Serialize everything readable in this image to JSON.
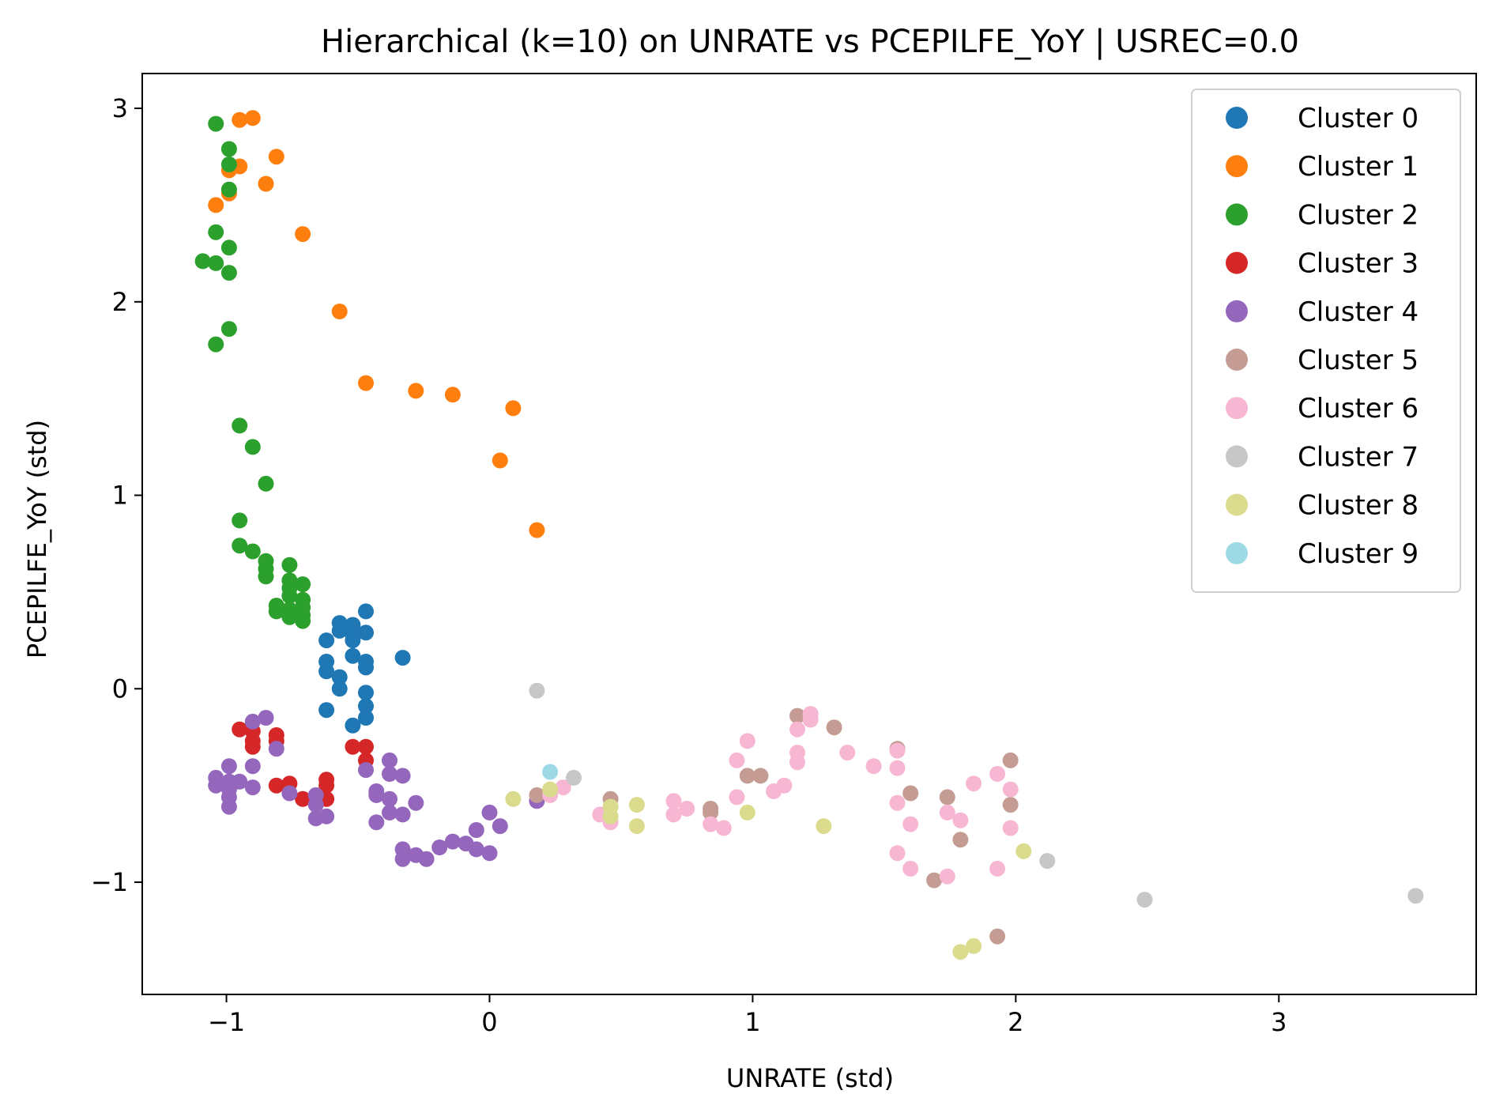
{
  "chart_data": {
    "type": "scatter",
    "title": "Hierarchical (k=10) on UNRATE vs PCEPILFE_YoY | USREC=0.0",
    "xlabel": "UNRATE (std)",
    "ylabel": "PCEPILFE_YoY (std)",
    "xlim": [
      -1.32,
      3.75
    ],
    "ylim": [
      -1.58,
      3.18
    ],
    "xticks": [
      -1,
      0,
      1,
      2,
      3
    ],
    "xtick_labels": [
      "−1",
      "0",
      "1",
      "2",
      "3"
    ],
    "yticks": [
      -1,
      0,
      1,
      2,
      3
    ],
    "ytick_labels": [
      "−1",
      "0",
      "1",
      "2",
      "3"
    ],
    "grid": false,
    "legend_position": "top-right",
    "series": [
      {
        "name": "Cluster 0",
        "color": "#1f77b4",
        "points": [
          [
            -0.57,
            0.34
          ],
          [
            -0.57,
            0.3
          ],
          [
            -0.52,
            0.33
          ],
          [
            -0.52,
            0.28
          ],
          [
            -0.52,
            0.25
          ],
          [
            -0.47,
            0.4
          ],
          [
            -0.47,
            0.29
          ],
          [
            -0.62,
            0.25
          ],
          [
            -0.62,
            0.14
          ],
          [
            -0.62,
            0.09
          ],
          [
            -0.57,
            0.06
          ],
          [
            -0.57,
            0.0
          ],
          [
            -0.52,
            0.17
          ],
          [
            -0.47,
            0.14
          ],
          [
            -0.47,
            0.11
          ],
          [
            -0.47,
            -0.02
          ],
          [
            -0.47,
            -0.09
          ],
          [
            -0.47,
            -0.15
          ],
          [
            -0.52,
            -0.19
          ],
          [
            -0.62,
            -0.11
          ],
          [
            -0.33,
            0.16
          ]
        ]
      },
      {
        "name": "Cluster 1",
        "color": "#ff7f0e",
        "points": [
          [
            -0.95,
            2.94
          ],
          [
            -0.9,
            2.95
          ],
          [
            -0.95,
            2.7
          ],
          [
            -0.99,
            2.68
          ],
          [
            -0.85,
            2.61
          ],
          [
            -0.81,
            2.75
          ],
          [
            -0.99,
            2.56
          ],
          [
            -1.04,
            2.5
          ],
          [
            -0.71,
            2.35
          ],
          [
            -0.57,
            1.95
          ],
          [
            -0.47,
            1.58
          ],
          [
            -0.28,
            1.54
          ],
          [
            -0.14,
            1.52
          ],
          [
            0.09,
            1.45
          ],
          [
            0.04,
            1.18
          ],
          [
            0.18,
            0.82
          ]
        ]
      },
      {
        "name": "Cluster 2",
        "color": "#2ca02c",
        "points": [
          [
            -1.04,
            2.92
          ],
          [
            -0.99,
            2.79
          ],
          [
            -0.99,
            2.71
          ],
          [
            -0.99,
            2.58
          ],
          [
            -1.04,
            2.36
          ],
          [
            -0.99,
            2.28
          ],
          [
            -1.09,
            2.21
          ],
          [
            -1.04,
            2.2
          ],
          [
            -0.99,
            2.15
          ],
          [
            -0.99,
            1.86
          ],
          [
            -1.04,
            1.78
          ],
          [
            -0.95,
            1.36
          ],
          [
            -0.9,
            1.25
          ],
          [
            -0.85,
            1.06
          ],
          [
            -0.95,
            0.87
          ],
          [
            -0.95,
            0.74
          ],
          [
            -0.9,
            0.71
          ],
          [
            -0.85,
            0.66
          ],
          [
            -0.85,
            0.62
          ],
          [
            -0.85,
            0.58
          ],
          [
            -0.76,
            0.64
          ],
          [
            -0.76,
            0.56
          ],
          [
            -0.76,
            0.52
          ],
          [
            -0.76,
            0.48
          ],
          [
            -0.71,
            0.54
          ],
          [
            -0.71,
            0.46
          ],
          [
            -0.71,
            0.42
          ],
          [
            -0.81,
            0.43
          ],
          [
            -0.81,
            0.4
          ],
          [
            -0.76,
            0.41
          ],
          [
            -0.76,
            0.37
          ],
          [
            -0.71,
            0.38
          ],
          [
            -0.71,
            0.35
          ]
        ]
      },
      {
        "name": "Cluster 3",
        "color": "#d62728",
        "points": [
          [
            -0.95,
            -0.21
          ],
          [
            -0.9,
            -0.22
          ],
          [
            -0.9,
            -0.27
          ],
          [
            -0.9,
            -0.3
          ],
          [
            -0.81,
            -0.24
          ],
          [
            -0.81,
            -0.27
          ],
          [
            -0.81,
            -0.5
          ],
          [
            -0.76,
            -0.49
          ],
          [
            -0.71,
            -0.57
          ],
          [
            -0.62,
            -0.47
          ],
          [
            -0.62,
            -0.5
          ],
          [
            -0.62,
            -0.57
          ],
          [
            -0.52,
            -0.3
          ],
          [
            -0.47,
            -0.3
          ],
          [
            -0.47,
            -0.37
          ]
        ]
      },
      {
        "name": "Cluster 4",
        "color": "#9467bd",
        "points": [
          [
            -0.9,
            -0.17
          ],
          [
            -0.85,
            -0.15
          ],
          [
            -0.81,
            -0.31
          ],
          [
            -1.04,
            -0.46
          ],
          [
            -1.04,
            -0.5
          ],
          [
            -0.99,
            -0.4
          ],
          [
            -0.99,
            -0.48
          ],
          [
            -0.99,
            -0.52
          ],
          [
            -0.99,
            -0.56
          ],
          [
            -0.99,
            -0.61
          ],
          [
            -0.95,
            -0.48
          ],
          [
            -0.9,
            -0.4
          ],
          [
            -0.9,
            -0.51
          ],
          [
            -0.76,
            -0.54
          ],
          [
            -0.66,
            -0.55
          ],
          [
            -0.66,
            -0.6
          ],
          [
            -0.66,
            -0.67
          ],
          [
            -0.62,
            -0.66
          ],
          [
            -0.47,
            -0.42
          ],
          [
            -0.43,
            -0.53
          ],
          [
            -0.43,
            -0.55
          ],
          [
            -0.43,
            -0.69
          ],
          [
            -0.38,
            -0.37
          ],
          [
            -0.38,
            -0.44
          ],
          [
            -0.38,
            -0.57
          ],
          [
            -0.38,
            -0.64
          ],
          [
            -0.33,
            -0.45
          ],
          [
            -0.33,
            -0.65
          ],
          [
            -0.28,
            -0.59
          ],
          [
            -0.33,
            -0.83
          ],
          [
            -0.33,
            -0.88
          ],
          [
            -0.28,
            -0.86
          ],
          [
            -0.24,
            -0.88
          ],
          [
            -0.19,
            -0.82
          ],
          [
            -0.14,
            -0.79
          ],
          [
            -0.09,
            -0.8
          ],
          [
            -0.05,
            -0.83
          ],
          [
            0.0,
            -0.85
          ],
          [
            -0.05,
            -0.73
          ],
          [
            0.0,
            -0.64
          ],
          [
            0.04,
            -0.71
          ],
          [
            0.18,
            -0.58
          ]
        ]
      },
      {
        "name": "Cluster 5",
        "color": "#c49c94",
        "points": [
          [
            0.18,
            -0.55
          ],
          [
            0.46,
            -0.57
          ],
          [
            0.84,
            -0.62
          ],
          [
            0.84,
            -0.64
          ],
          [
            0.98,
            -0.45
          ],
          [
            1.03,
            -0.45
          ],
          [
            1.17,
            -0.14
          ],
          [
            1.31,
            -0.2
          ],
          [
            1.55,
            -0.31
          ],
          [
            1.6,
            -0.54
          ],
          [
            1.74,
            -0.56
          ],
          [
            1.79,
            -0.78
          ],
          [
            1.69,
            -0.99
          ],
          [
            1.98,
            -0.37
          ],
          [
            1.98,
            -0.6
          ],
          [
            1.93,
            -1.28
          ]
        ]
      },
      {
        "name": "Cluster 6",
        "color": "#f7b6d2",
        "points": [
          [
            0.23,
            -0.55
          ],
          [
            0.28,
            -0.51
          ],
          [
            0.42,
            -0.65
          ],
          [
            0.46,
            -0.69
          ],
          [
            0.7,
            -0.58
          ],
          [
            0.7,
            -0.65
          ],
          [
            0.75,
            -0.62
          ],
          [
            0.84,
            -0.7
          ],
          [
            0.89,
            -0.72
          ],
          [
            0.94,
            -0.37
          ],
          [
            0.94,
            -0.56
          ],
          [
            0.98,
            -0.27
          ],
          [
            1.08,
            -0.53
          ],
          [
            1.12,
            -0.5
          ],
          [
            1.17,
            -0.21
          ],
          [
            1.17,
            -0.33
          ],
          [
            1.17,
            -0.38
          ],
          [
            1.22,
            -0.13
          ],
          [
            1.22,
            -0.16
          ],
          [
            1.36,
            -0.33
          ],
          [
            1.46,
            -0.4
          ],
          [
            1.55,
            -0.32
          ],
          [
            1.55,
            -0.41
          ],
          [
            1.55,
            -0.59
          ],
          [
            1.55,
            -0.85
          ],
          [
            1.6,
            -0.7
          ],
          [
            1.6,
            -0.93
          ],
          [
            1.74,
            -0.64
          ],
          [
            1.74,
            -0.97
          ],
          [
            1.79,
            -0.68
          ],
          [
            1.84,
            -0.49
          ],
          [
            1.93,
            -0.44
          ],
          [
            1.93,
            -0.93
          ],
          [
            1.98,
            -0.52
          ],
          [
            1.98,
            -0.72
          ]
        ]
      },
      {
        "name": "Cluster 7",
        "color": "#c7c7c7",
        "points": [
          [
            0.18,
            -0.01
          ],
          [
            0.32,
            -0.46
          ],
          [
            2.12,
            -0.89
          ],
          [
            2.49,
            -1.09
          ],
          [
            3.52,
            -1.07
          ]
        ]
      },
      {
        "name": "Cluster 8",
        "color": "#dbdb8d",
        "points": [
          [
            0.09,
            -0.57
          ],
          [
            0.23,
            -0.52
          ],
          [
            0.46,
            -0.61
          ],
          [
            0.46,
            -0.66
          ],
          [
            0.56,
            -0.6
          ],
          [
            0.56,
            -0.71
          ],
          [
            0.98,
            -0.64
          ],
          [
            1.27,
            -0.71
          ],
          [
            2.03,
            -0.84
          ],
          [
            1.79,
            -1.36
          ],
          [
            1.84,
            -1.33
          ]
        ]
      },
      {
        "name": "Cluster 9",
        "color": "#9edae5",
        "points": [
          [
            0.23,
            -0.43
          ]
        ]
      }
    ]
  }
}
